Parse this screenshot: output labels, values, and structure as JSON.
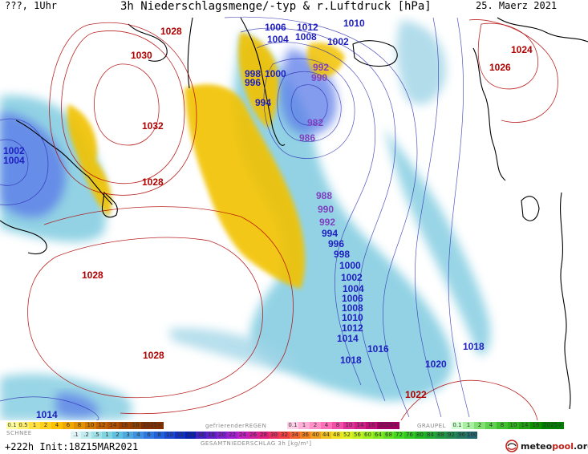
{
  "header": {
    "left": "???, 1Uhr",
    "title": "3h Niederschlagsmenge/-typ & r.Luftdruck [hPa]",
    "date": "25. Maerz 2021"
  },
  "footer": {
    "init": "+222h  Init:18Z15MAR2021",
    "logo": {
      "pre": "meteo",
      "accent": "pool",
      "post": ".org"
    }
  },
  "legend": {
    "snow": {
      "label": "SCHNEE",
      "values": [
        "0.1",
        "0.5",
        "1",
        "2",
        "4",
        "6",
        "8",
        "10",
        "12",
        "14",
        "16",
        "18",
        "2025+"
      ],
      "colors": [
        "#ffffa0",
        "#fff070",
        "#ffe040",
        "#ffd020",
        "#ffc000",
        "#f0a800",
        "#e09000",
        "#d07800",
        "#c06000",
        "#b05000",
        "#a04000",
        "#904000",
        "#803000"
      ]
    },
    "freezing_rain": {
      "label": "gefrierenderREGEN",
      "values": [
        "0.1",
        "1",
        "2",
        "4",
        "8",
        "10",
        "14",
        "16",
        "2025+"
      ],
      "colors": [
        "#ffd0e8",
        "#ffb0d8",
        "#ff90c8",
        "#ff70b8",
        "#f050a8",
        "#e03098",
        "#d02088",
        "#c01078",
        "#a00060"
      ]
    },
    "graupel": {
      "label": "GRAUPEL",
      "values": [
        "0.1",
        "1",
        "2",
        "4",
        "8",
        "10",
        "14",
        "16",
        "2025+"
      ],
      "colors": [
        "#d0ffd0",
        "#a8f0a0",
        "#80e070",
        "#60d050",
        "#40c030",
        "#30b020",
        "#20a010",
        "#109000",
        "#008000"
      ]
    },
    "total": {
      "label": "GESAMTNIEDERSCHLAG 3h [kg/m²]",
      "values": [
        ".1",
        ".2",
        ".5",
        "1",
        "2",
        "3",
        "4",
        "6",
        "8",
        "10",
        "12",
        "14",
        "16",
        "18",
        "20",
        "22",
        "24",
        "26",
        "28",
        "30",
        "32",
        "34",
        "36",
        "40",
        "44",
        "48",
        "52",
        "56",
        "60",
        "64",
        "68",
        "72",
        "76",
        "80",
        "84",
        "88",
        "92",
        "96",
        "100"
      ],
      "colors": [
        "#e0f4f8",
        "#c0ecf0",
        "#a0e0e8",
        "#80d4e0",
        "#60c0e0",
        "#50a8e0",
        "#4090e0",
        "#3078e0",
        "#2060d8",
        "#1848d0",
        "#1030c0",
        "#0820b0",
        "#4020c0",
        "#6020c8",
        "#8020d0",
        "#a020d0",
        "#c020c0",
        "#d020a0",
        "#e02080",
        "#e83060",
        "#f04040",
        "#f06030",
        "#f08020",
        "#f0a020",
        "#f0c020",
        "#f0e020",
        "#e0f020",
        "#c0f020",
        "#a0f020",
        "#80e820",
        "#60e020",
        "#40d820",
        "#30c820",
        "#20b820",
        "#20a830",
        "#209840",
        "#208850",
        "#207860",
        "#206870"
      ]
    }
  },
  "isobar_labels": [
    {
      "text": "1028",
      "color": "#b00000"
    },
    {
      "text": "1030",
      "color": "#b00000"
    },
    {
      "text": "1032",
      "color": "#b00000"
    },
    {
      "text": "1028",
      "color": "#b00000"
    },
    {
      "text": "1028",
      "color": "#b00000"
    },
    {
      "text": "1028",
      "color": "#b00000"
    },
    {
      "text": "1024",
      "color": "#b00000"
    },
    {
      "text": "1026",
      "color": "#b00000"
    },
    {
      "text": "1022",
      "color": "#b00000"
    },
    {
      "text": "1002",
      "color": "#2020c0"
    },
    {
      "text": "1004",
      "color": "#2020c0"
    },
    {
      "text": "1006",
      "color": "#2020c0"
    },
    {
      "text": "1004",
      "color": "#2020c0"
    },
    {
      "text": "1012",
      "color": "#2020c0"
    },
    {
      "text": "1008",
      "color": "#2020c0"
    },
    {
      "text": "1010",
      "color": "#2020c0"
    },
    {
      "text": "1002",
      "color": "#2020c0"
    },
    {
      "text": "998",
      "color": "#2020c0"
    },
    {
      "text": "1000",
      "color": "#2020c0"
    },
    {
      "text": "996",
      "color": "#2020c0"
    },
    {
      "text": "992",
      "color": "#8040c0"
    },
    {
      "text": "990",
      "color": "#8040c0"
    },
    {
      "text": "994",
      "color": "#2020c0"
    },
    {
      "text": "982",
      "color": "#8040c0"
    },
    {
      "text": "986",
      "color": "#8040c0"
    },
    {
      "text": "988",
      "color": "#8040c0"
    },
    {
      "text": "990",
      "color": "#8040c0"
    },
    {
      "text": "992",
      "color": "#8040c0"
    },
    {
      "text": "994",
      "color": "#2020c0"
    },
    {
      "text": "996",
      "color": "#2020c0"
    },
    {
      "text": "998",
      "color": "#2020c0"
    },
    {
      "text": "1000",
      "color": "#2020c0"
    },
    {
      "text": "1002",
      "color": "#2020c0"
    },
    {
      "text": "1004",
      "color": "#2020c0"
    },
    {
      "text": "1006",
      "color": "#2020c0"
    },
    {
      "text": "1008",
      "color": "#2020c0"
    },
    {
      "text": "1010",
      "color": "#2020c0"
    },
    {
      "text": "1012",
      "color": "#2020c0"
    },
    {
      "text": "1014",
      "color": "#2020c0"
    },
    {
      "text": "1016",
      "color": "#2020c0"
    },
    {
      "text": "1018",
      "color": "#2020c0"
    },
    {
      "text": "1018",
      "color": "#2020c0"
    },
    {
      "text": "1020",
      "color": "#2020c0"
    },
    {
      "text": "1014",
      "color": "#2020c0"
    }
  ]
}
